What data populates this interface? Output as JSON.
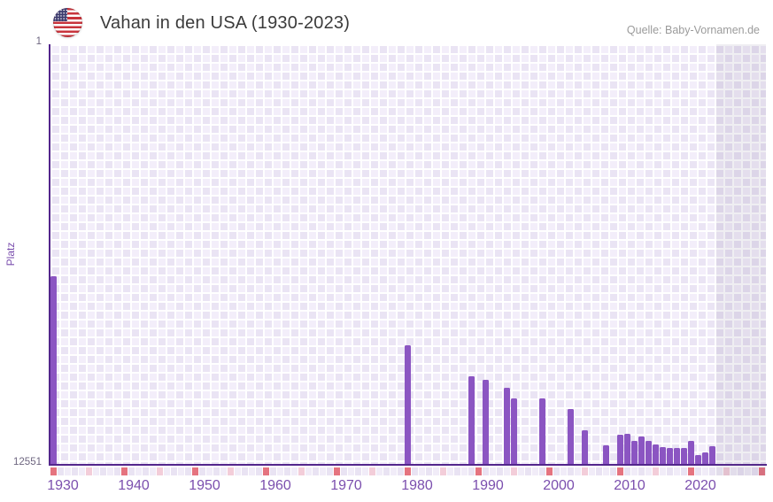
{
  "header": {
    "title": "Vahan in den USA (1930-2023)",
    "flag_icon": "us-flag-round"
  },
  "source": {
    "label": "Quelle: Baby-Vornamen.de"
  },
  "chart_data": {
    "type": "bar",
    "title": "Vahan in den USA (1930-2023)",
    "xlabel": "",
    "ylabel": "Platz",
    "y_axis": {
      "top_label": "1",
      "bottom_label": "12551",
      "min": 1,
      "max": 12551,
      "inverted": true
    },
    "x_axis": {
      "min": 1930,
      "max": 2030,
      "tick_labels": [
        "1930",
        "1940",
        "1950",
        "1960",
        "1970",
        "1980",
        "1990",
        "2000",
        "2010",
        "2020"
      ],
      "future_shade_start": 2024
    },
    "series": [
      {
        "year": 1930,
        "rank": 6920
      },
      {
        "year": 1980,
        "rank": 8980
      },
      {
        "year": 1989,
        "rank": 9910
      },
      {
        "year": 1991,
        "rank": 10010
      },
      {
        "year": 1994,
        "rank": 10250
      },
      {
        "year": 1995,
        "rank": 10570
      },
      {
        "year": 1999,
        "rank": 10580
      },
      {
        "year": 2003,
        "rank": 10890
      },
      {
        "year": 2005,
        "rank": 11510
      },
      {
        "year": 2008,
        "rank": 11960
      },
      {
        "year": 2010,
        "rank": 11640
      },
      {
        "year": 2011,
        "rank": 11630
      },
      {
        "year": 2012,
        "rank": 11840
      },
      {
        "year": 2013,
        "rank": 11710
      },
      {
        "year": 2014,
        "rank": 11850
      },
      {
        "year": 2015,
        "rank": 11940
      },
      {
        "year": 2016,
        "rank": 12020
      },
      {
        "year": 2017,
        "rank": 12060
      },
      {
        "year": 2018,
        "rank": 12050
      },
      {
        "year": 2019,
        "rank": 12060
      },
      {
        "year": 2020,
        "rank": 11850
      },
      {
        "year": 2021,
        "rank": 12260
      },
      {
        "year": 2022,
        "rank": 12190
      },
      {
        "year": 2023,
        "rank": 12000
      }
    ],
    "colors": {
      "bar": "#8b55c2",
      "axis": "#53268c",
      "marker_decade": "#e5737f",
      "marker_half_decade": "#f3cdd9",
      "strip_cell_a": "#f1ecf8",
      "strip_cell_b": "#e9e3f3"
    }
  }
}
